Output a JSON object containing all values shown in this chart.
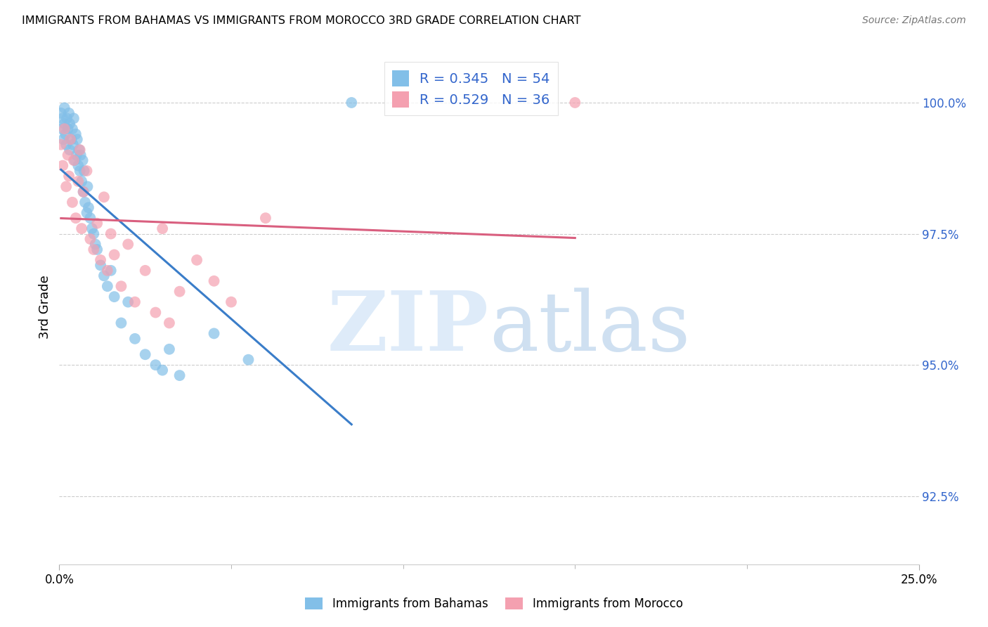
{
  "title": "IMMIGRANTS FROM BAHAMAS VS IMMIGRANTS FROM MOROCCO 3RD GRADE CORRELATION CHART",
  "source": "Source: ZipAtlas.com",
  "ylabel": "3rd Grade",
  "yticks": [
    92.5,
    95.0,
    97.5,
    100.0
  ],
  "ytick_labels": [
    "92.5%",
    "95.0%",
    "97.5%",
    "100.0%"
  ],
  "xmin": 0.0,
  "xmax": 25.0,
  "ymin": 91.2,
  "ymax": 101.0,
  "bahamas_color": "#82bfe8",
  "morocco_color": "#f4a0b0",
  "bahamas_line_color": "#3a7dc9",
  "morocco_line_color": "#d95f7f",
  "legend_label_bahamas": "Immigrants from Bahamas",
  "legend_label_morocco": "Immigrants from Morocco",
  "R_bahamas": 0.345,
  "N_bahamas": 54,
  "R_morocco": 0.529,
  "N_morocco": 36,
  "bahamas_x": [
    0.05,
    0.08,
    0.1,
    0.12,
    0.15,
    0.15,
    0.18,
    0.2,
    0.22,
    0.25,
    0.28,
    0.3,
    0.3,
    0.35,
    0.38,
    0.4,
    0.42,
    0.45,
    0.48,
    0.5,
    0.52,
    0.55,
    0.58,
    0.6,
    0.62,
    0.65,
    0.68,
    0.7,
    0.72,
    0.75,
    0.8,
    0.82,
    0.85,
    0.9,
    0.95,
    1.0,
    1.05,
    1.1,
    1.2,
    1.3,
    1.4,
    1.5,
    1.6,
    1.8,
    2.0,
    2.2,
    2.5,
    2.8,
    3.0,
    3.2,
    3.5,
    4.5,
    5.5,
    8.5
  ],
  "bahamas_y": [
    99.8,
    99.5,
    99.7,
    99.3,
    99.6,
    99.9,
    99.4,
    99.2,
    99.7,
    99.5,
    99.8,
    99.1,
    99.6,
    99.3,
    99.5,
    99.2,
    99.7,
    98.9,
    99.4,
    99.0,
    99.3,
    98.8,
    99.1,
    98.7,
    99.0,
    98.5,
    98.9,
    98.3,
    98.7,
    98.1,
    97.9,
    98.4,
    98.0,
    97.8,
    97.6,
    97.5,
    97.3,
    97.2,
    96.9,
    96.7,
    96.5,
    96.8,
    96.3,
    95.8,
    96.2,
    95.5,
    95.2,
    95.0,
    94.9,
    95.3,
    94.8,
    95.6,
    95.1,
    100.0
  ],
  "morocco_x": [
    0.05,
    0.1,
    0.15,
    0.2,
    0.25,
    0.28,
    0.32,
    0.38,
    0.42,
    0.48,
    0.55,
    0.6,
    0.65,
    0.7,
    0.8,
    0.9,
    1.0,
    1.1,
    1.2,
    1.3,
    1.4,
    1.5,
    1.6,
    1.8,
    2.0,
    2.2,
    2.5,
    2.8,
    3.0,
    3.2,
    3.5,
    4.0,
    4.5,
    5.0,
    6.0,
    15.0
  ],
  "morocco_y": [
    99.2,
    98.8,
    99.5,
    98.4,
    99.0,
    98.6,
    99.3,
    98.1,
    98.9,
    97.8,
    98.5,
    99.1,
    97.6,
    98.3,
    98.7,
    97.4,
    97.2,
    97.7,
    97.0,
    98.2,
    96.8,
    97.5,
    97.1,
    96.5,
    97.3,
    96.2,
    96.8,
    96.0,
    97.6,
    95.8,
    96.4,
    97.0,
    96.6,
    96.2,
    97.8,
    100.0
  ]
}
